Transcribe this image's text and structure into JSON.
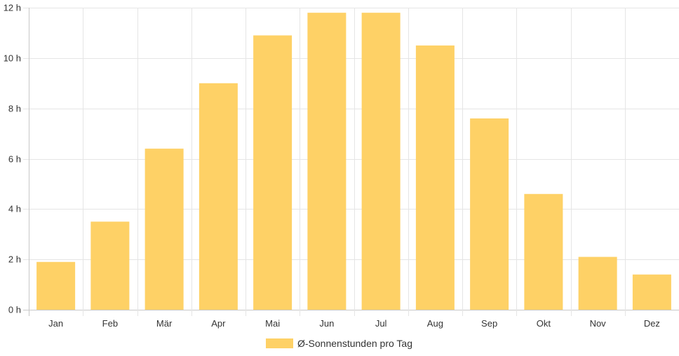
{
  "chart_data": {
    "type": "bar",
    "categories": [
      "Jan",
      "Feb",
      "Mär",
      "Apr",
      "Mai",
      "Jun",
      "Jul",
      "Aug",
      "Sep",
      "Okt",
      "Nov",
      "Dez"
    ],
    "series": [
      {
        "name": "Ø-Sonnenstunden pro Tag",
        "values": [
          1.9,
          3.5,
          6.4,
          9.0,
          10.9,
          11.8,
          11.8,
          10.5,
          7.6,
          4.6,
          2.1,
          1.4
        ]
      }
    ],
    "yticks": [
      0,
      2,
      4,
      6,
      8,
      10,
      12
    ],
    "y_unit_suffix": " h",
    "ylim": [
      0,
      12
    ],
    "grid": true,
    "legend_position": "bottom",
    "bar_color": "#fed166"
  }
}
